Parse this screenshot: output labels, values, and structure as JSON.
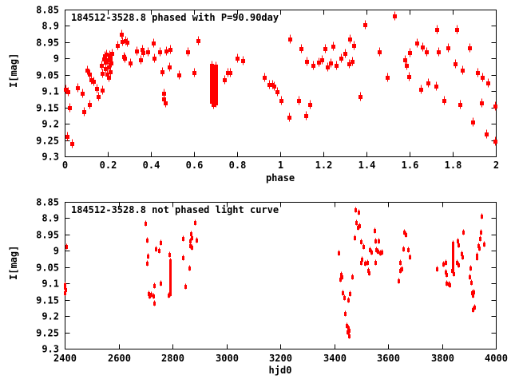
{
  "figure": {
    "background": "#ffffff",
    "axis_color": "#000000",
    "point_color": "#ff0000"
  },
  "chart_data": [
    {
      "type": "scatter",
      "title": "184512-3528.8 phased with P=90.90day",
      "xlabel": "phase",
      "ylabel": "I[mag]",
      "xlim": [
        0,
        2
      ],
      "ylim": [
        9.3,
        8.85
      ],
      "y_axis_inverted_magnitudes": true,
      "grid": false,
      "legend": "none",
      "marker": "red-filled-square-with-errorbar",
      "color": "#ff0000",
      "xticks": {
        "values": [
          0,
          0.2,
          0.4,
          0.6,
          0.8,
          1,
          1.2,
          1.4,
          1.6,
          1.8,
          2
        ],
        "labels": [
          "0",
          "0.2",
          "0.4",
          "0.6",
          "0.8",
          "1",
          "1.2",
          "1.4",
          "1.6",
          "1.8",
          "2"
        ]
      },
      "yticks": {
        "values": [
          8.85,
          8.9,
          8.95,
          9,
          9.05,
          9.1,
          9.15,
          9.2,
          9.25,
          9.3
        ],
        "labels": [
          "8.85",
          "8.9",
          "8.95",
          "9",
          "9.05",
          "9.1",
          "9.15",
          "9.2",
          "9.25",
          "9.3"
        ]
      },
      "points": [
        [
          0.002,
          9.095
        ],
        [
          0.012,
          9.238
        ],
        [
          0.015,
          9.102
        ],
        [
          0.022,
          9.15
        ],
        [
          0.033,
          9.26
        ],
        [
          0.058,
          9.09
        ],
        [
          0.082,
          9.108
        ],
        [
          0.089,
          9.162
        ],
        [
          0.104,
          9.037
        ],
        [
          0.115,
          9.047
        ],
        [
          0.116,
          9.14
        ],
        [
          0.122,
          9.066
        ],
        [
          0.133,
          9.071
        ],
        [
          0.148,
          9.093
        ],
        [
          0.155,
          9.117
        ],
        [
          0.174,
          9.096
        ],
        [
          0.17,
          9.022
        ],
        [
          0.175,
          9.045
        ],
        [
          0.18,
          9.002
        ],
        [
          0.184,
          8.992
        ],
        [
          0.188,
          9.012
        ],
        [
          0.19,
          9.03
        ],
        [
          0.193,
          8.988
        ],
        [
          0.196,
          9.048
        ],
        [
          0.2,
          9.005
        ],
        [
          0.203,
          9.025
        ],
        [
          0.205,
          9.058
        ],
        [
          0.207,
          8.99
        ],
        [
          0.21,
          9.002
        ],
        [
          0.212,
          9.04
        ],
        [
          0.215,
          9.015
        ],
        [
          0.22,
          8.985
        ],
        [
          0.244,
          8.96
        ],
        [
          0.262,
          8.925
        ],
        [
          0.266,
          8.948
        ],
        [
          0.274,
          8.995
        ],
        [
          0.277,
          9.0
        ],
        [
          0.28,
          8.945
        ],
        [
          0.289,
          8.951
        ],
        [
          0.304,
          9.015
        ],
        [
          0.332,
          8.978
        ],
        [
          0.352,
          9.003
        ],
        [
          0.358,
          8.972
        ],
        [
          0.364,
          8.981
        ],
        [
          0.385,
          8.98
        ],
        [
          0.41,
          8.953
        ],
        [
          0.413,
          8.998
        ],
        [
          0.44,
          8.98
        ],
        [
          0.452,
          9.04
        ],
        [
          0.459,
          9.108
        ],
        [
          0.46,
          9.125
        ],
        [
          0.466,
          9.137
        ],
        [
          0.47,
          8.977
        ],
        [
          0.485,
          9.027
        ],
        [
          0.49,
          8.973
        ],
        [
          0.53,
          9.05
        ],
        [
          0.57,
          8.98
        ],
        [
          0.6,
          9.043
        ],
        [
          0.62,
          8.945
        ],
        [
          0.683,
          9.02
        ],
        [
          0.683,
          9.028
        ],
        [
          0.683,
          9.036
        ],
        [
          0.683,
          9.044
        ],
        [
          0.683,
          9.052
        ],
        [
          0.683,
          9.06
        ],
        [
          0.683,
          9.068
        ],
        [
          0.683,
          9.076
        ],
        [
          0.683,
          9.084
        ],
        [
          0.683,
          9.092
        ],
        [
          0.683,
          9.1
        ],
        [
          0.683,
          9.108
        ],
        [
          0.683,
          9.116
        ],
        [
          0.683,
          9.124
        ],
        [
          0.683,
          9.132
        ],
        [
          0.7,
          9.024
        ],
        [
          0.7,
          9.032
        ],
        [
          0.7,
          9.04
        ],
        [
          0.7,
          9.048
        ],
        [
          0.7,
          9.056
        ],
        [
          0.7,
          9.064
        ],
        [
          0.7,
          9.072
        ],
        [
          0.7,
          9.08
        ],
        [
          0.7,
          9.088
        ],
        [
          0.7,
          9.096
        ],
        [
          0.7,
          9.104
        ],
        [
          0.7,
          9.112
        ],
        [
          0.7,
          9.12
        ],
        [
          0.7,
          9.128
        ],
        [
          0.7,
          9.136
        ],
        [
          0.688,
          9.142
        ],
        [
          0.74,
          9.066
        ],
        [
          0.756,
          9.042
        ],
        [
          0.768,
          9.043
        ],
        [
          0.8,
          8.998
        ],
        [
          0.826,
          9.007
        ],
        [
          0.926,
          9.057
        ],
        [
          0.948,
          9.079
        ],
        [
          0.963,
          9.081
        ],
        [
          0.97,
          9.084
        ],
        [
          0.985,
          9.103
        ],
        [
          1.004,
          9.13
        ],
        [
          1.041,
          9.181
        ],
        [
          1.044,
          8.941
        ],
        [
          1.085,
          9.13
        ],
        [
          1.098,
          8.971
        ],
        [
          1.119,
          9.175
        ],
        [
          1.122,
          9.009
        ],
        [
          1.137,
          9.141
        ],
        [
          1.152,
          9.02
        ],
        [
          1.178,
          9.012
        ],
        [
          1.193,
          9.004
        ],
        [
          1.208,
          8.97
        ],
        [
          1.219,
          9.025
        ],
        [
          1.233,
          9.015
        ],
        [
          1.245,
          8.963
        ],
        [
          1.259,
          9.022
        ],
        [
          1.281,
          8.998
        ],
        [
          1.3,
          8.985
        ],
        [
          1.318,
          9.017
        ],
        [
          1.322,
          8.941
        ],
        [
          1.333,
          9.01
        ],
        [
          1.341,
          8.961
        ],
        [
          1.37,
          9.116
        ],
        [
          1.392,
          8.896
        ],
        [
          1.459,
          8.98
        ],
        [
          1.496,
          9.057
        ],
        [
          1.53,
          8.869
        ],
        [
          1.578,
          9.004
        ],
        [
          1.585,
          9.02
        ],
        [
          1.596,
          9.056
        ],
        [
          1.6,
          8.982
        ],
        [
          1.633,
          8.953
        ],
        [
          1.65,
          9.094
        ],
        [
          1.659,
          8.966
        ],
        [
          1.678,
          8.98
        ],
        [
          1.687,
          9.074
        ],
        [
          1.722,
          9.085
        ],
        [
          1.726,
          8.911
        ],
        [
          1.733,
          8.98
        ],
        [
          1.759,
          9.13
        ],
        [
          1.778,
          8.968
        ],
        [
          1.811,
          9.017
        ],
        [
          1.819,
          8.911
        ],
        [
          1.833,
          9.141
        ],
        [
          1.844,
          9.037
        ],
        [
          1.878,
          8.968
        ],
        [
          1.893,
          9.194
        ],
        [
          1.913,
          9.044
        ],
        [
          1.933,
          9.136
        ],
        [
          1.937,
          9.059
        ],
        [
          1.956,
          9.231
        ],
        [
          1.963,
          9.074
        ],
        [
          1.995,
          9.145
        ],
        [
          1.998,
          9.253
        ]
      ]
    },
    {
      "type": "scatter",
      "title": "184512-3528.8 not phased light curve",
      "xlabel": "hjd0",
      "ylabel": "I[mag]",
      "xlim": [
        2400,
        4000
      ],
      "ylim": [
        9.3,
        8.85
      ],
      "y_axis_inverted_magnitudes": true,
      "grid": false,
      "legend": "none",
      "marker": "red-small-dot-with-errorbar",
      "color": "#ff0000",
      "xticks": {
        "values": [
          2400,
          2600,
          2800,
          3000,
          3200,
          3400,
          3600,
          3800,
          4000
        ],
        "labels": [
          "2400",
          "2600",
          "2800",
          "3000",
          "3200",
          "3400",
          "3600",
          "3800",
          "4000"
        ]
      },
      "yticks": {
        "values": [
          8.85,
          8.9,
          8.95,
          9,
          9.05,
          9.1,
          9.15,
          9.2,
          9.25,
          9.3
        ],
        "labels": [
          "8.85",
          "8.9",
          "8.95",
          "9",
          "9.05",
          "9.1",
          "9.15",
          "9.2",
          "9.25",
          "9.3"
        ]
      },
      "points": [
        [
          2400,
          9.104
        ],
        [
          2401,
          9.112
        ],
        [
          2401,
          9.129
        ],
        [
          2402,
          9.119
        ],
        [
          2406,
          8.987
        ],
        [
          2699,
          8.916
        ],
        [
          2705,
          8.967
        ],
        [
          2705,
          9.038
        ],
        [
          2708,
          9.016
        ],
        [
          2711,
          9.131
        ],
        [
          2714,
          9.139
        ],
        [
          2720,
          9.134
        ],
        [
          2729,
          9.139
        ],
        [
          2732,
          9.107
        ],
        [
          2732,
          9.161
        ],
        [
          2738,
          8.994
        ],
        [
          2750,
          8.999
        ],
        [
          2756,
          8.975
        ],
        [
          2756,
          9.099
        ],
        [
          2786,
          9.135
        ],
        [
          2788,
          9.011
        ],
        [
          2790,
          9.031
        ],
        [
          2790,
          9.036
        ],
        [
          2790,
          9.041
        ],
        [
          2790,
          9.046
        ],
        [
          2790,
          9.051
        ],
        [
          2790,
          9.056
        ],
        [
          2790,
          9.061
        ],
        [
          2790,
          9.066
        ],
        [
          2790,
          9.071
        ],
        [
          2790,
          9.076
        ],
        [
          2790,
          9.081
        ],
        [
          2790,
          9.086
        ],
        [
          2790,
          9.091
        ],
        [
          2790,
          9.096
        ],
        [
          2790,
          9.101
        ],
        [
          2790,
          9.106
        ],
        [
          2790,
          9.111
        ],
        [
          2790,
          9.116
        ],
        [
          2790,
          9.121
        ],
        [
          2790,
          9.126
        ],
        [
          2790,
          9.131
        ],
        [
          2838,
          8.962
        ],
        [
          2838,
          9.021
        ],
        [
          2847,
          9.109
        ],
        [
          2862,
          9.053
        ],
        [
          2865,
          8.97
        ],
        [
          2865,
          8.984
        ],
        [
          2868,
          8.948
        ],
        [
          2871,
          8.96
        ],
        [
          2871,
          8.989
        ],
        [
          2883,
          8.914
        ],
        [
          2889,
          8.967
        ],
        [
          3416,
          9.006
        ],
        [
          3422,
          9.087
        ],
        [
          3425,
          9.072
        ],
        [
          3428,
          9.079
        ],
        [
          3431,
          9.129
        ],
        [
          3437,
          9.143
        ],
        [
          3440,
          9.192
        ],
        [
          3446,
          9.229
        ],
        [
          3449,
          9.249
        ],
        [
          3452,
          9.236
        ],
        [
          3452,
          9.151
        ],
        [
          3455,
          9.244
        ],
        [
          3455,
          9.261
        ],
        [
          3458,
          9.131
        ],
        [
          3467,
          9.079
        ],
        [
          3476,
          8.96
        ],
        [
          3478,
          8.874
        ],
        [
          3481,
          8.914
        ],
        [
          3487,
          8.928
        ],
        [
          3490,
          8.882
        ],
        [
          3493,
          8.923
        ],
        [
          3499,
          8.972
        ],
        [
          3499,
          9.036
        ],
        [
          3502,
          9.026
        ],
        [
          3508,
          8.987
        ],
        [
          3514,
          9.038
        ],
        [
          3523,
          9.036
        ],
        [
          3526,
          9.06
        ],
        [
          3529,
          9.067
        ],
        [
          3532,
          8.997
        ],
        [
          3538,
          9.004
        ],
        [
          3550,
          8.938
        ],
        [
          3553,
          8.97
        ],
        [
          3553,
          9.036
        ],
        [
          3556,
          8.997
        ],
        [
          3561,
          9.002
        ],
        [
          3565,
          8.97
        ],
        [
          3570,
          9.006
        ],
        [
          3576,
          9.004
        ],
        [
          3638,
          9.092
        ],
        [
          3644,
          9.036
        ],
        [
          3644,
          9.06
        ],
        [
          3650,
          9.056
        ],
        [
          3656,
          8.994
        ],
        [
          3659,
          8.943
        ],
        [
          3665,
          8.95
        ],
        [
          3674,
          8.997
        ],
        [
          3680,
          9.019
        ],
        [
          3781,
          9.055
        ],
        [
          3804,
          9.041
        ],
        [
          3813,
          9.036
        ],
        [
          3813,
          9.065
        ],
        [
          3816,
          9.072
        ],
        [
          3816,
          9.099
        ],
        [
          3825,
          9.102
        ],
        [
          3828,
          9.104
        ],
        [
          3840,
          8.977
        ],
        [
          3840,
          8.982
        ],
        [
          3840,
          8.987
        ],
        [
          3840,
          8.992
        ],
        [
          3840,
          8.997
        ],
        [
          3840,
          9.002
        ],
        [
          3840,
          9.007
        ],
        [
          3840,
          9.012
        ],
        [
          3840,
          9.017
        ],
        [
          3840,
          9.022
        ],
        [
          3840,
          9.027
        ],
        [
          3840,
          9.032
        ],
        [
          3840,
          9.037
        ],
        [
          3840,
          9.042
        ],
        [
          3840,
          9.047
        ],
        [
          3840,
          9.052
        ],
        [
          3840,
          9.057
        ],
        [
          3837,
          9.06
        ],
        [
          3843,
          9.07
        ],
        [
          3855,
          9.036
        ],
        [
          3858,
          8.97
        ],
        [
          3861,
          8.982
        ],
        [
          3861,
          9.043
        ],
        [
          3872,
          9.009
        ],
        [
          3875,
          9.019
        ],
        [
          3879,
          8.943
        ],
        [
          3902,
          9.08
        ],
        [
          3905,
          9.053
        ],
        [
          3908,
          9.097
        ],
        [
          3911,
          9.129
        ],
        [
          3914,
          9.136
        ],
        [
          3914,
          9.18
        ],
        [
          3917,
          9.126
        ],
        [
          3920,
          9.173
        ],
        [
          3929,
          9.014
        ],
        [
          3929,
          9.021
        ],
        [
          3935,
          8.984
        ],
        [
          3938,
          8.992
        ],
        [
          3941,
          8.962
        ],
        [
          3944,
          8.943
        ],
        [
          3947,
          8.894
        ],
        [
          3956,
          8.98
        ]
      ]
    }
  ]
}
